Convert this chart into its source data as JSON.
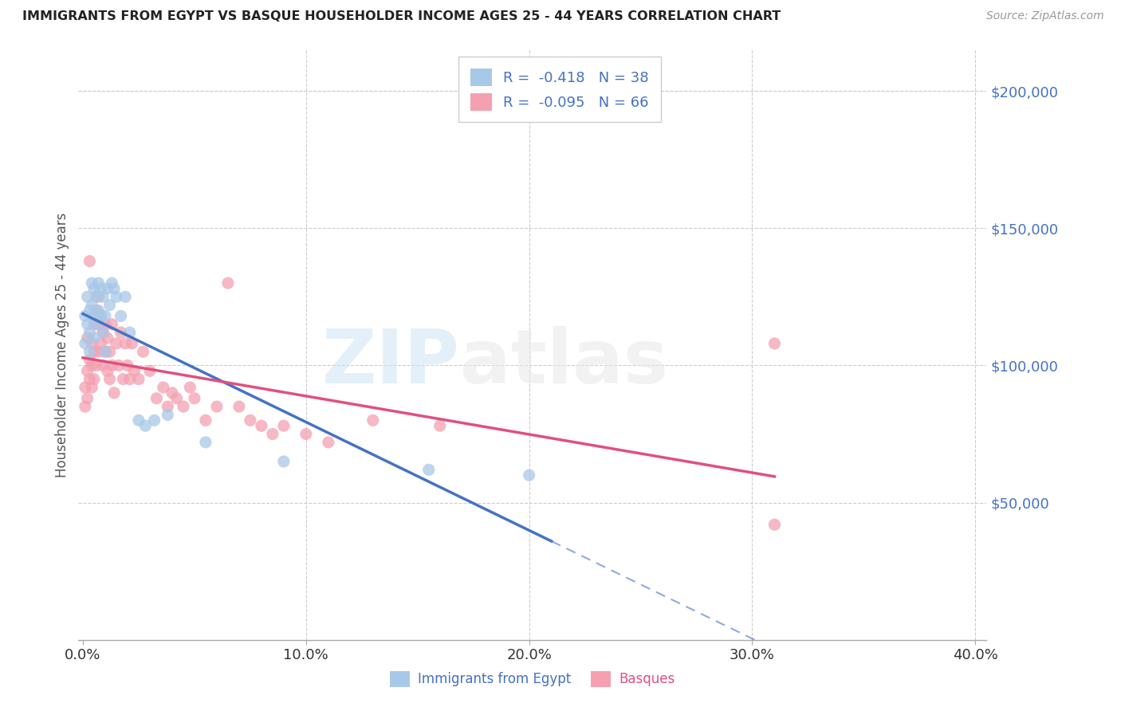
{
  "title": "IMMIGRANTS FROM EGYPT VS BASQUE HOUSEHOLDER INCOME AGES 25 - 44 YEARS CORRELATION CHART",
  "source": "Source: ZipAtlas.com",
  "ylabel": "Householder Income Ages 25 - 44 years",
  "ytick_labels": [
    "$50,000",
    "$100,000",
    "$150,000",
    "$200,000"
  ],
  "ytick_vals": [
    50000,
    100000,
    150000,
    200000
  ],
  "ylim": [
    0,
    215000
  ],
  "xlim": [
    -0.002,
    0.405
  ],
  "xlabel_ticks": [
    "0.0%",
    "10.0%",
    "20.0%",
    "30.0%",
    "40.0%"
  ],
  "xlabel_vals": [
    0.0,
    0.1,
    0.2,
    0.3,
    0.4
  ],
  "legend_label1": "Immigrants from Egypt",
  "legend_label2": "Basques",
  "r1": "-0.418",
  "n1": "38",
  "r2": "-0.095",
  "n2": "66",
  "color_egypt": "#a8c8e8",
  "color_basque": "#f4a0b0",
  "line_color_egypt": "#4472c4",
  "line_color_basque": "#e05080",
  "grid_color": "#cccccc",
  "egypt_x": [
    0.001,
    0.001,
    0.002,
    0.002,
    0.003,
    0.003,
    0.003,
    0.004,
    0.004,
    0.005,
    0.005,
    0.005,
    0.006,
    0.006,
    0.007,
    0.007,
    0.008,
    0.008,
    0.009,
    0.009,
    0.01,
    0.01,
    0.011,
    0.012,
    0.013,
    0.014,
    0.015,
    0.017,
    0.019,
    0.021,
    0.025,
    0.028,
    0.032,
    0.038,
    0.055,
    0.09,
    0.155,
    0.2
  ],
  "egypt_y": [
    118000,
    108000,
    125000,
    115000,
    120000,
    112000,
    105000,
    130000,
    122000,
    118000,
    128000,
    110000,
    125000,
    115000,
    130000,
    120000,
    128000,
    118000,
    125000,
    112000,
    118000,
    105000,
    128000,
    122000,
    130000,
    128000,
    125000,
    118000,
    125000,
    112000,
    80000,
    78000,
    80000,
    82000,
    72000,
    65000,
    62000,
    60000
  ],
  "basque_x": [
    0.001,
    0.001,
    0.002,
    0.002,
    0.002,
    0.003,
    0.003,
    0.003,
    0.004,
    0.004,
    0.004,
    0.005,
    0.005,
    0.005,
    0.006,
    0.006,
    0.007,
    0.007,
    0.007,
    0.008,
    0.008,
    0.009,
    0.009,
    0.01,
    0.01,
    0.011,
    0.011,
    0.012,
    0.012,
    0.013,
    0.013,
    0.014,
    0.015,
    0.016,
    0.017,
    0.018,
    0.019,
    0.02,
    0.021,
    0.022,
    0.023,
    0.025,
    0.027,
    0.03,
    0.033,
    0.036,
    0.038,
    0.04,
    0.042,
    0.045,
    0.048,
    0.05,
    0.055,
    0.06,
    0.065,
    0.07,
    0.075,
    0.08,
    0.085,
    0.09,
    0.1,
    0.11,
    0.13,
    0.16,
    0.31,
    0.31
  ],
  "basque_y": [
    92000,
    85000,
    98000,
    110000,
    88000,
    102000,
    95000,
    138000,
    108000,
    100000,
    92000,
    115000,
    105000,
    95000,
    120000,
    100000,
    125000,
    115000,
    105000,
    118000,
    108000,
    112000,
    100000,
    115000,
    105000,
    110000,
    98000,
    105000,
    95000,
    100000,
    115000,
    90000,
    108000,
    100000,
    112000,
    95000,
    108000,
    100000,
    95000,
    108000,
    98000,
    95000,
    105000,
    98000,
    88000,
    92000,
    85000,
    90000,
    88000,
    85000,
    92000,
    88000,
    80000,
    85000,
    130000,
    85000,
    80000,
    78000,
    75000,
    78000,
    75000,
    72000,
    80000,
    78000,
    108000,
    42000
  ]
}
